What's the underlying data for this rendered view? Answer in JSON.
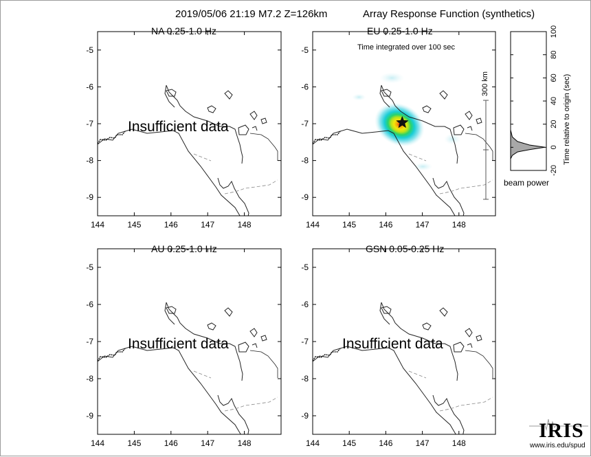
{
  "header": {
    "event": "2019/05/06 21:19  M7.2  Z=126km",
    "product": "Array Response Function (synthetics)"
  },
  "panels": [
    {
      "id": "NA",
      "title": "NA  0.25-1.0 Hz",
      "status": "Insufficient data",
      "has_response": false
    },
    {
      "id": "EU",
      "title": "EU  0.25-1.0 Hz",
      "status": "",
      "has_response": true,
      "note": "Time integrated over 100 sec",
      "scale_label": "300 km"
    },
    {
      "id": "AU",
      "title": "AU  0.25-1.0 Hz",
      "status": "Insufficient data",
      "has_response": false
    },
    {
      "id": "GSN",
      "title": "GSN  0.05-0.25 Hz",
      "status": "Insufficient data",
      "has_response": false
    }
  ],
  "beam_panel": {
    "xlabel": "beam power",
    "ylabel": "Time relative to origin (sec)"
  },
  "logo": {
    "name": "IRIS",
    "url": "www.iris.edu/spud"
  },
  "colors": {
    "response_ramp": [
      "#ddf4f6",
      "#8fe4ee",
      "#19cdd6",
      "#2ad26b",
      "#b6e31d",
      "#f4e60b",
      "#f5a20b",
      "#e52a12"
    ],
    "beam_fill": "#a8a8a8"
  },
  "chart_data": [
    {
      "type": "heatmap",
      "title": "NA  0.25-1.0 Hz",
      "xlabel": "",
      "ylabel": "",
      "xlim": [
        144,
        149
      ],
      "ylim": [
        -9.5,
        -4.5
      ],
      "x_ticks": [
        144,
        145,
        146,
        147,
        148
      ],
      "y_ticks": [
        -5,
        -6,
        -7,
        -8,
        -9
      ],
      "annotation": "Insufficient data",
      "values": []
    },
    {
      "type": "heatmap",
      "title": "EU  0.25-1.0 Hz",
      "xlabel": "",
      "ylabel": "",
      "xlim": [
        144,
        149
      ],
      "ylim": [
        -9.5,
        -4.5
      ],
      "x_ticks": [
        144,
        145,
        146,
        147,
        148
      ],
      "y_ticks": [
        -5,
        -6,
        -7,
        -8,
        -9
      ],
      "annotation": "Time integrated over 100 sec",
      "epicenter": {
        "lon": 146.45,
        "lat": -6.97
      },
      "peak_beam_power": 1.0,
      "scale_bar": "300 km"
    },
    {
      "type": "heatmap",
      "title": "AU  0.25-1.0 Hz",
      "xlabel": "",
      "ylabel": "",
      "xlim": [
        144,
        149
      ],
      "ylim": [
        -9.5,
        -4.5
      ],
      "x_ticks": [
        144,
        145,
        146,
        147,
        148
      ],
      "y_ticks": [
        -5,
        -6,
        -7,
        -8,
        -9
      ],
      "annotation": "Insufficient data",
      "values": []
    },
    {
      "type": "heatmap",
      "title": "GSN  0.05-0.25 Hz",
      "xlabel": "",
      "ylabel": "",
      "xlim": [
        144,
        149
      ],
      "ylim": [
        -9.5,
        -4.5
      ],
      "x_ticks": [
        144,
        145,
        146,
        147,
        148
      ],
      "y_ticks": [
        -5,
        -6,
        -7,
        -8,
        -9
      ],
      "annotation": "Insufficient data",
      "values": []
    },
    {
      "type": "area",
      "title": "",
      "xlabel": "beam power",
      "ylabel": "Time relative to origin (sec)",
      "ylim": [
        -20,
        100
      ],
      "y_ticks": [
        -20,
        0,
        20,
        40,
        60,
        80,
        100
      ],
      "series": [
        {
          "x": [
            0.0,
            0.05,
            0.2,
            0.55,
            1.0,
            0.55,
            0.2,
            0.05,
            0.0
          ],
          "y": [
            -10,
            -7,
            -4,
            -2,
            0,
            2,
            5,
            9,
            15
          ]
        }
      ]
    }
  ]
}
